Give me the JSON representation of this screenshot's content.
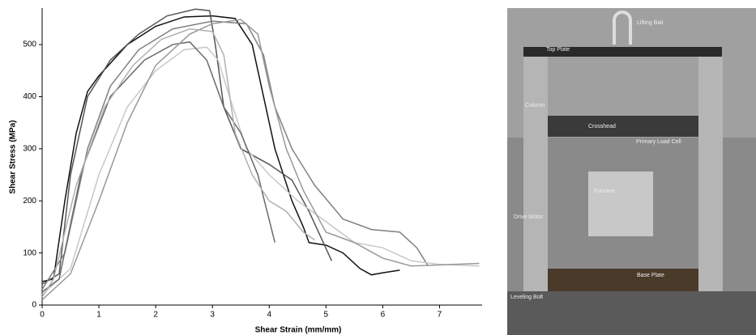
{
  "chart_data": {
    "type": "line",
    "xlabel": "Shear Strain (mm/mm)",
    "ylabel": "Shear Stress (MPa)",
    "xlim": [
      0,
      7.75
    ],
    "ylim": [
      0,
      570
    ],
    "xticks": [
      0,
      1,
      2,
      3,
      4,
      5,
      6,
      7
    ],
    "yticks": [
      0,
      100,
      200,
      300,
      400,
      500
    ],
    "series": [
      {
        "color": "#111111",
        "x": [
          0,
          0.2,
          0.4,
          0.6,
          0.8,
          1,
          1.5,
          2,
          2.5,
          3,
          3.4,
          3.7,
          3.9,
          4.1,
          4.4,
          4.6,
          4.7,
          5.0,
          5.3,
          5.6,
          5.8,
          6.0,
          6.3
        ],
        "values": [
          45,
          50,
          200,
          330,
          410,
          440,
          500,
          535,
          553,
          555,
          550,
          500,
          400,
          300,
          200,
          150,
          120,
          115,
          100,
          70,
          58,
          62,
          67
        ]
      },
      {
        "color": "#555555",
        "x": [
          0,
          0.3,
          0.5,
          0.8,
          1.2,
          1.7,
          2.2,
          2.7,
          2.95,
          3.05,
          3.2,
          3.5,
          4,
          4.4,
          4.7,
          5.1
        ],
        "values": [
          40,
          60,
          250,
          400,
          470,
          520,
          555,
          568,
          565,
          500,
          380,
          300,
          270,
          240,
          180,
          85
        ]
      },
      {
        "color": "#808080",
        "x": [
          0,
          0.4,
          0.8,
          1.2,
          1.7,
          2.3,
          3,
          3.6,
          3.9,
          4.1,
          4.4,
          4.8,
          5.3,
          5.8,
          6.3,
          6.6,
          6.8
        ],
        "values": [
          30,
          100,
          300,
          420,
          490,
          530,
          545,
          540,
          480,
          380,
          300,
          230,
          165,
          145,
          140,
          110,
          75
        ]
      },
      {
        "color": "#c8c8c8",
        "x": [
          0,
          0.5,
          1,
          1.5,
          2,
          2.5,
          2.9,
          3.1,
          3.3,
          3.6,
          4,
          4.5,
          5,
          5.5,
          6,
          6.5,
          7,
          7.7
        ],
        "values": [
          20,
          70,
          250,
          380,
          450,
          490,
          495,
          470,
          400,
          300,
          250,
          200,
          160,
          120,
          110,
          85,
          78,
          75
        ]
      },
      {
        "color": "#6a6a6a",
        "x": [
          0,
          0.3,
          0.7,
          1.2,
          1.8,
          2.3,
          2.6,
          2.9,
          3.2,
          3.5,
          3.8,
          4.1
        ],
        "values": [
          25,
          50,
          260,
          400,
          470,
          500,
          505,
          470,
          380,
          330,
          250,
          120
        ]
      },
      {
        "color": "#999999",
        "x": [
          0,
          0.5,
          1,
          1.5,
          2,
          2.6,
          3,
          3.5,
          3.8,
          4,
          4.3,
          4.6,
          5,
          5.5,
          6,
          6.5,
          7.7
        ],
        "values": [
          10,
          60,
          200,
          350,
          460,
          520,
          540,
          548,
          520,
          420,
          300,
          220,
          140,
          120,
          90,
          75,
          80
        ]
      },
      {
        "color": "#b0b0b0",
        "x": [
          0,
          0.2,
          0.6,
          1.1,
          1.6,
          2.1,
          2.6,
          3.0,
          3.2,
          3.4,
          3.7,
          4,
          4.3,
          4.6,
          4.8
        ],
        "values": [
          15,
          50,
          230,
          380,
          460,
          510,
          530,
          525,
          480,
          330,
          250,
          200,
          180,
          140,
          125
        ]
      }
    ]
  },
  "photo": {
    "labels": [
      "Lifting Bail",
      "Top Plate",
      "Column",
      "Crosshead",
      "Primary Load Cell",
      "Furnace",
      "Drive Motor",
      "Base Plate",
      "Leveling Bolt"
    ]
  }
}
